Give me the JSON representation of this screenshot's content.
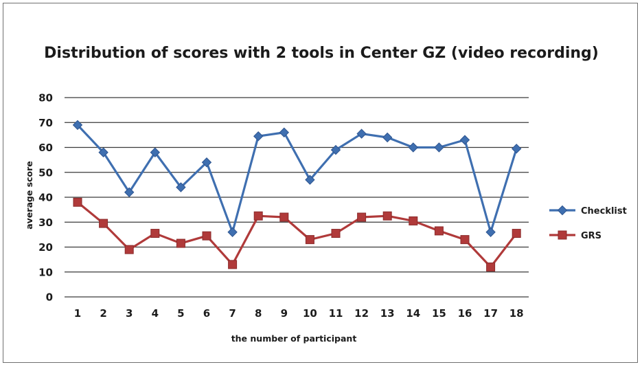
{
  "chart_data": {
    "type": "line",
    "title": "Distribution of scores with 2 tools in Center GZ (video recording)",
    "xlabel": "the number of participant",
    "ylabel": "average score",
    "categories": [
      "1",
      "2",
      "3",
      "4",
      "5",
      "6",
      "7",
      "8",
      "9",
      "10",
      "11",
      "12",
      "13",
      "14",
      "15",
      "16",
      "17",
      "18"
    ],
    "ylim": [
      0,
      80
    ],
    "yticks": [
      0,
      10,
      20,
      30,
      40,
      50,
      60,
      70,
      80
    ],
    "grid": true,
    "legend_position": "right",
    "series": [
      {
        "name": "Checklist",
        "color": "#3f6fb0",
        "marker": "diamond",
        "values": [
          69,
          58,
          42,
          58,
          44,
          54,
          26,
          64.5,
          66,
          47,
          59,
          65.5,
          64,
          60,
          60,
          63,
          26,
          59.5
        ]
      },
      {
        "name": "GRS",
        "color": "#b03a3a",
        "marker": "square",
        "values": [
          38,
          29.5,
          19,
          25.5,
          21.5,
          24.5,
          13,
          32.5,
          32,
          23,
          25.5,
          32,
          32.5,
          30.5,
          26.5,
          23,
          12,
          25.5
        ]
      }
    ]
  }
}
